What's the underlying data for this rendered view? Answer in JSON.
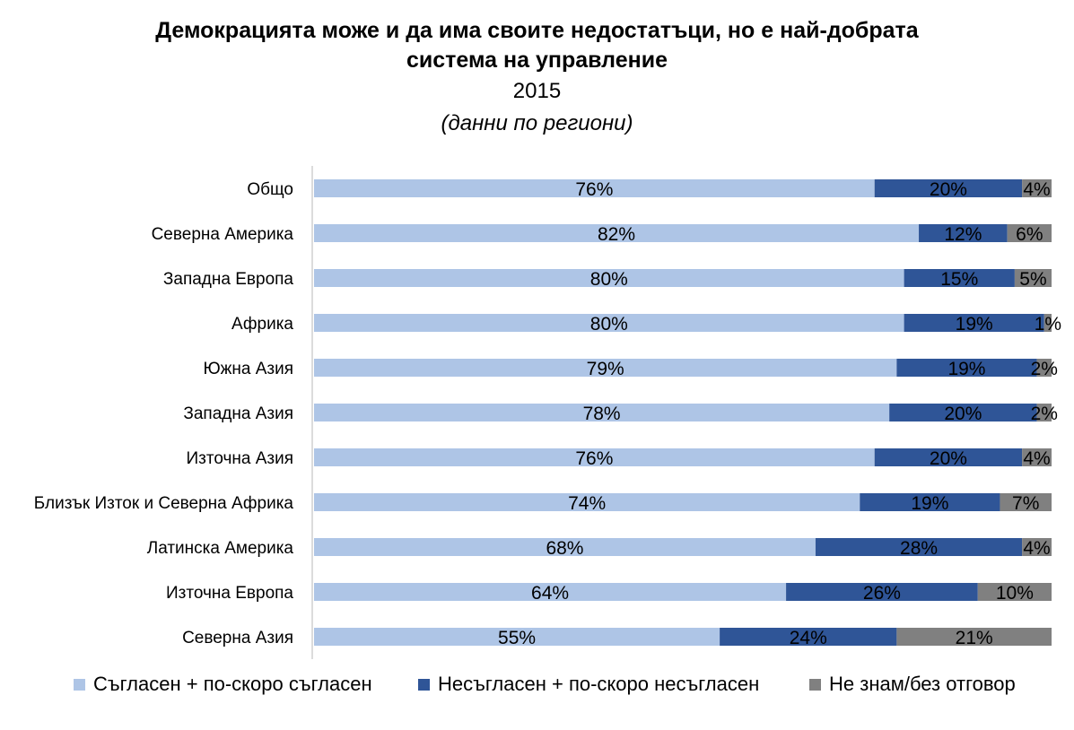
{
  "colors": {
    "agree": "#aec5e6",
    "disagree": "#2f5597",
    "dontknow": "#808080",
    "axis": "#d0d0d0"
  },
  "chart_data": {
    "type": "bar",
    "orientation": "horizontal",
    "stacked": true,
    "title_line1": "Демокрацията може и да има своите недостатъци, но е най-добрата",
    "title_line2": "система на управление",
    "subtitle": "2015",
    "note": "(данни по региони)",
    "xlim": [
      0,
      100
    ],
    "categories": [
      "Общо",
      "Северна Америка",
      "Западна Европа",
      "Африка",
      "Южна Азия",
      "Западна Азия",
      "Източна Азия",
      "Близък Изток и Северна Африка",
      "Латинска Америка",
      "Източна Европа",
      "Северна Азия"
    ],
    "series": [
      {
        "name": "Съгласен + по-скоро съгласен",
        "color_key": "agree",
        "values": [
          76,
          82,
          80,
          80,
          79,
          78,
          76,
          74,
          68,
          64,
          55
        ]
      },
      {
        "name": "Несъгласен + по-скоро несъгласен",
        "color_key": "disagree",
        "values": [
          20,
          12,
          15,
          19,
          19,
          20,
          20,
          19,
          28,
          26,
          24
        ]
      },
      {
        "name": "Не знам/без отговор",
        "color_key": "dontknow",
        "values": [
          4,
          6,
          5,
          1,
          2,
          2,
          4,
          7,
          4,
          10,
          21
        ]
      }
    ],
    "legend_position": "bottom"
  }
}
